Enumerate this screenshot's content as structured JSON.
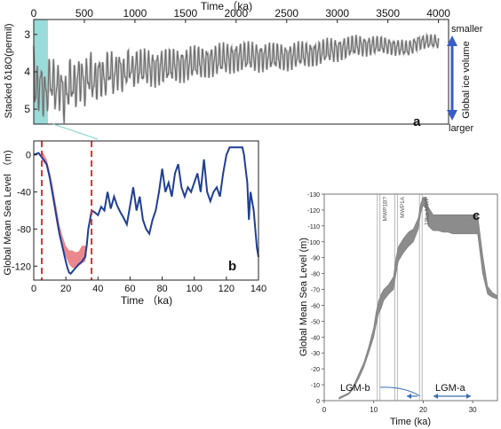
{
  "chart_data": [
    {
      "panel": "a",
      "type": "line",
      "xlabel": "Time （ka)",
      "ylabel": "Stacked δ18O(permil)",
      "xlim": [
        0,
        4100
      ],
      "ylim": [
        5.4,
        2.6
      ],
      "y_inverted": true,
      "xticks": [
        0,
        500,
        1000,
        1500,
        2000,
        2500,
        3000,
        3500,
        4000
      ],
      "yticks": [
        3,
        4,
        5
      ],
      "highlight_band_x": [
        0,
        140
      ],
      "annotations": {
        "top": "smaller",
        "middle": "Global ice volume",
        "bottom": "larger",
        "panel_label": "a"
      },
      "envelope": [
        [
          0,
          4.4
        ],
        [
          100,
          4.5
        ],
        [
          200,
          4.3
        ],
        [
          300,
          4.6
        ],
        [
          400,
          4.3
        ],
        [
          500,
          4.2
        ],
        [
          600,
          4.2
        ],
        [
          700,
          4.1
        ],
        [
          800,
          4.0
        ],
        [
          900,
          4.0
        ],
        [
          1000,
          3.9
        ],
        [
          1200,
          3.9
        ],
        [
          1500,
          3.8
        ],
        [
          1800,
          3.7
        ],
        [
          2000,
          3.6
        ],
        [
          2200,
          3.6
        ],
        [
          2500,
          3.6
        ],
        [
          2800,
          3.5
        ],
        [
          3000,
          3.4
        ],
        [
          3200,
          3.3
        ],
        [
          3500,
          3.3
        ],
        [
          3700,
          3.4
        ],
        [
          3800,
          3.2
        ],
        [
          4000,
          3.2
        ]
      ],
      "amplitude": [
        [
          0,
          0.9
        ],
        [
          500,
          0.8
        ],
        [
          800,
          0.7
        ],
        [
          1000,
          0.55
        ],
        [
          1500,
          0.5
        ],
        [
          2000,
          0.45
        ],
        [
          2500,
          0.4
        ],
        [
          3000,
          0.35
        ],
        [
          3500,
          0.25
        ],
        [
          4000,
          0.2
        ]
      ],
      "color": "#111111"
    },
    {
      "panel": "b",
      "type": "line",
      "xlabel": "Time （ka)",
      "ylabel": "Global Mean Sea Level （m)",
      "xlim": [
        0,
        140
      ],
      "ylim": [
        -135,
        15
      ],
      "xticks": [
        0,
        20,
        40,
        60,
        80,
        100,
        120,
        140
      ],
      "yticks": [
        0,
        -40,
        -80,
        -120
      ],
      "vlines": [
        5,
        36
      ],
      "panel_label": "b",
      "series": [
        {
          "color": "#1f3f94",
          "x": [
            0,
            3,
            6,
            8,
            10,
            12,
            14,
            16,
            18,
            20,
            21,
            22,
            23,
            24,
            26,
            28,
            30,
            32,
            33,
            34,
            35,
            36,
            38,
            40,
            42,
            44,
            46,
            48,
            50,
            52,
            54,
            56,
            58,
            60,
            62,
            64,
            66,
            68,
            70,
            72,
            74,
            76,
            78,
            80,
            82,
            84,
            86,
            88,
            90,
            92,
            94,
            96,
            98,
            100,
            102,
            104,
            106,
            108,
            110,
            112,
            114,
            116,
            118,
            120,
            122,
            124,
            126,
            128,
            130,
            131,
            132,
            133,
            134,
            135,
            136,
            137,
            138,
            139,
            140
          ],
          "y": [
            0,
            2,
            -5,
            -10,
            -25,
            -45,
            -65,
            -85,
            -100,
            -115,
            -122,
            -127,
            -128,
            -126,
            -122,
            -118,
            -115,
            -110,
            -98,
            -80,
            -70,
            -60,
            -62,
            -65,
            -56,
            -60,
            -40,
            -58,
            -45,
            -55,
            -62,
            -68,
            -75,
            -55,
            -35,
            -60,
            -45,
            -70,
            -80,
            -85,
            -70,
            -60,
            -40,
            -15,
            -40,
            -30,
            -45,
            -20,
            -10,
            -35,
            -45,
            -35,
            -40,
            -30,
            -20,
            -40,
            -5,
            -40,
            -50,
            -40,
            -35,
            -45,
            -20,
            0,
            8,
            8,
            8,
            8,
            8,
            0,
            -15,
            -30,
            -70,
            -40,
            -50,
            -60,
            -80,
            -100,
            -110
          ]
        }
      ],
      "band": {
        "color": "#e8737a",
        "x": [
          5,
          8,
          10,
          12,
          14,
          16,
          18,
          20,
          22,
          24,
          26,
          28,
          30,
          32,
          33
        ],
        "upper": [
          5,
          -5,
          -18,
          -35,
          -55,
          -75,
          -88,
          -98,
          -103,
          -103,
          -105,
          -104,
          -98,
          -98,
          -100
        ],
        "lower": [
          -5,
          -12,
          -28,
          -50,
          -72,
          -90,
          -100,
          -110,
          -118,
          -122,
          -122,
          -120,
          -117,
          -115,
          -108
        ]
      }
    },
    {
      "panel": "c",
      "type": "area",
      "xlabel": "Time (ka)",
      "ylabel": "Global Mean Sea Level (m)",
      "xlim": [
        0,
        35
      ],
      "ylim": [
        -130,
        0
      ],
      "xticks": [
        0,
        10,
        20,
        30
      ],
      "yticks": [
        0,
        -10,
        -20,
        -30,
        -40,
        -50,
        -60,
        -70,
        -80,
        -90,
        -100,
        -110,
        -120,
        -130
      ],
      "vlines": [
        {
          "x": 11,
          "label": "MWP1B?"
        },
        {
          "x": 14.5,
          "label": "MWP1A"
        },
        {
          "x": 19.5,
          "label": "19ka-MWP"
        }
      ],
      "annotations": {
        "lgm_b": "LGM-b",
        "lgm_a": "LGM-a",
        "panel_label": "c"
      },
      "band": {
        "color": "#8c8c8c",
        "x": [
          3,
          5,
          6,
          7,
          8,
          9,
          10,
          10.5,
          11,
          11.5,
          12,
          13,
          14,
          14.5,
          15,
          16,
          17,
          18,
          19,
          19.5,
          20,
          20.5,
          21,
          22,
          23,
          24,
          25,
          26,
          27,
          28,
          29,
          30,
          31,
          32,
          33,
          34,
          35
        ],
        "upper": [
          -1,
          -4,
          -8,
          -14,
          -21,
          -30,
          -40,
          -48,
          -55,
          -58,
          -63,
          -67,
          -70,
          -80,
          -88,
          -93,
          -97,
          -100,
          -108,
          -118,
          -123,
          -121,
          -110,
          -107,
          -107,
          -106,
          -106,
          -105,
          -105,
          -105,
          -105,
          -105,
          -105,
          -80,
          -67,
          -65,
          -64
        ],
        "lower": [
          -2,
          -5,
          -10,
          -17,
          -24,
          -34,
          -46,
          -56,
          -63,
          -67,
          -70,
          -73,
          -78,
          -90,
          -97,
          -102,
          -106,
          -108,
          -115,
          -124,
          -128,
          -128,
          -122,
          -117,
          -117,
          -117,
          -117,
          -117,
          -117,
          -117,
          -117,
          -117,
          -117,
          -92,
          -72,
          -68,
          -66
        ]
      }
    }
  ]
}
